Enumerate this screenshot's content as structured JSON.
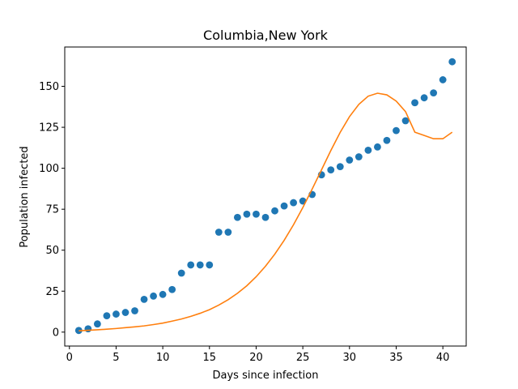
{
  "chart_data": {
    "type": "scatter",
    "title": "Columbia,New York",
    "xlabel": "Days since infection",
    "ylabel": "Population infected",
    "xlim": [
      -0.5,
      42.5
    ],
    "ylim": [
      -8.5,
      174
    ],
    "xticks": [
      0,
      5,
      10,
      15,
      20,
      25,
      30,
      35,
      40
    ],
    "yticks": [
      0,
      25,
      50,
      75,
      100,
      125,
      150
    ],
    "grid": false,
    "series": [
      {
        "type": "scatter",
        "color": "#1f77b4",
        "x": [
          1,
          2,
          3,
          4,
          5,
          6,
          7,
          8,
          9,
          10,
          11,
          12,
          13,
          14,
          15,
          16,
          17,
          18,
          19,
          20,
          21,
          22,
          23,
          24,
          25,
          26,
          27,
          28,
          29,
          30,
          31,
          32,
          33,
          34,
          35,
          36,
          37,
          38,
          39,
          40,
          41
        ],
        "y": [
          1,
          2,
          5,
          10,
          11,
          12,
          13,
          20,
          22,
          23,
          26,
          36,
          41,
          41,
          41,
          61,
          61,
          70,
          72,
          72,
          70,
          74,
          77,
          79,
          80,
          84,
          96,
          99,
          101,
          105,
          107,
          111,
          113,
          117,
          123,
          129,
          140,
          143,
          146,
          154,
          165
        ]
      },
      {
        "type": "line",
        "color": "#ff7f0e",
        "x": [
          1,
          2,
          3,
          4,
          5,
          6,
          7,
          8,
          9,
          10,
          11,
          12,
          13,
          14,
          15,
          16,
          17,
          18,
          19,
          20,
          21,
          22,
          23,
          24,
          25,
          26,
          27,
          28,
          29,
          30,
          31,
          32,
          33,
          34,
          35,
          36,
          37,
          38,
          39,
          40,
          41
        ],
        "y": [
          0.8,
          1.1,
          1.4,
          1.8,
          2.2,
          2.7,
          3.2,
          3.8,
          4.6,
          5.5,
          6.7,
          8.0,
          9.6,
          11.5,
          13.7,
          16.5,
          19.8,
          23.7,
          28.3,
          33.8,
          40.2,
          47.6,
          56.0,
          65.5,
          76.0,
          87.3,
          99.0,
          110.8,
          121.9,
          131.5,
          139.0,
          144.0,
          145.8,
          144.8,
          141.0,
          134.6,
          122.0,
          120.0,
          118.0,
          118.0,
          122.0
        ]
      }
    ]
  }
}
